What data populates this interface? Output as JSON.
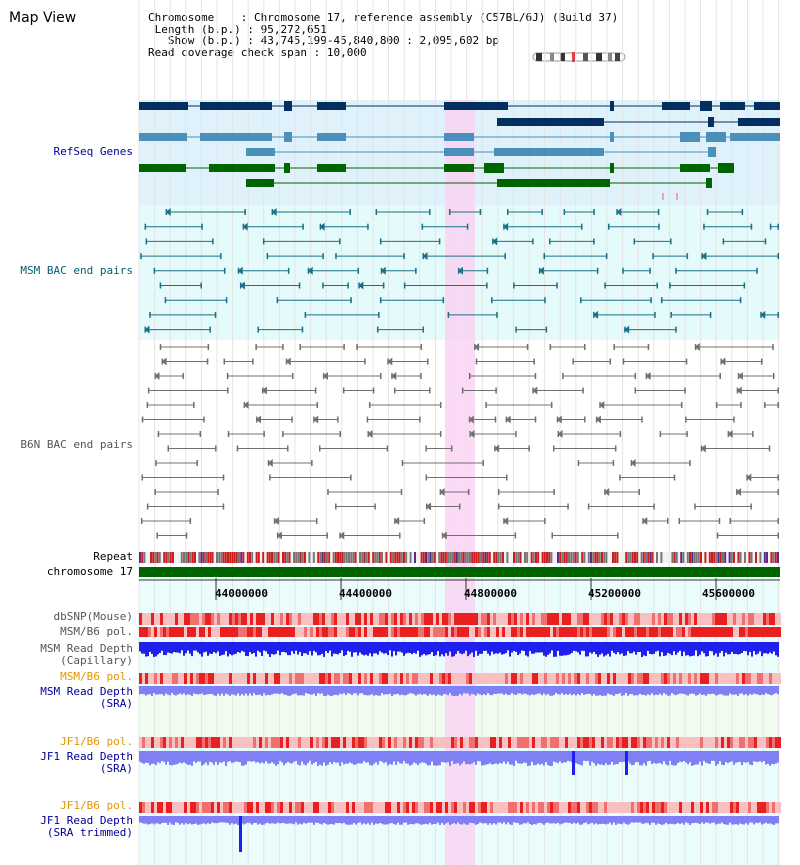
{
  "title": "Map View",
  "info": {
    "chromosome_key": "Chromosome",
    "chromosome_val": "Chromosome 17, reference assembly (C57BL/6J) (Build 37)",
    "length_key": "Length (b.p.)",
    "length_val": "95,272,651",
    "show_key": "Show (b.p.)",
    "show_val": "43,745,199-45,840,800 : 2,095,602 bp",
    "coverage_key": "Read coverage check span",
    "coverage_val": "10,000"
  },
  "tracks": {
    "refseq": "RefSeq Genes",
    "msm_bac": "MSM BAC end pairs",
    "b6n_bac": "B6N BAC end pairs",
    "repeat": "Repeat",
    "chromosome": "chromosome 17",
    "dbsnp": "dbSNP(Mouse)",
    "msm_b6_pol": "MSM/B6 pol.",
    "msm_depth_cap_1": "MSM Read Depth",
    "msm_depth_cap_2": "(Capillary)",
    "msm_b6_pol_2": "MSM/B6 pol.",
    "msm_depth_sra_1": "MSM Read Depth",
    "msm_depth_sra_2": "(SRA)",
    "jf1_pol_1": "JF1/B6 pol.",
    "jf1_depth_sra_1": "JF1 Read Depth",
    "jf1_depth_sra_2": "(SRA)",
    "jf1_pol_2": "JF1/B6 pol.",
    "jf1_depth_trim_1": "JF1 Read Depth",
    "jf1_depth_trim_2": "(SRA trimmed)"
  },
  "ruler_ticks": [
    "44000000",
    "44400000",
    "44800000",
    "45200000",
    "45600000"
  ],
  "colors": {
    "refseq_bg": "#dff1fb",
    "bac_bg": "#e5fafa",
    "highlight": "#f9d3f2",
    "gene_dark": "#03305f",
    "gene_mid": "#4a90b8",
    "gene_green": "#006400",
    "msm_bac": "#1b6f87",
    "b6n_bac": "#707070",
    "chromosome": "#006400",
    "depth_blue": "#2020ee",
    "depth_light": "#8080f5",
    "label_navy": "#000099",
    "label_orange": "#e69500",
    "label_teal": "#005f6f"
  }
}
